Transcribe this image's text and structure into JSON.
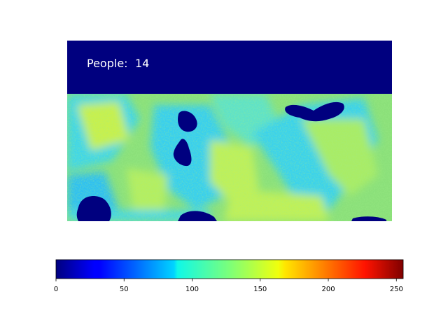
{
  "chart_data": {
    "type": "heatmap",
    "title": "",
    "overlay_text": {
      "label": "People:",
      "value": "14"
    },
    "colormap": "jet",
    "colorbar": {
      "orientation": "horizontal",
      "placement": "bottom",
      "min": 0,
      "max": 255,
      "ticks": [
        0,
        50,
        100,
        150,
        200,
        250
      ],
      "tick_labels": [
        "0",
        "50",
        "100",
        "150",
        "200",
        "250"
      ]
    },
    "heatmap_description_values": {
      "top_band_value": 0,
      "background_mean_value": 120
    },
    "grid": false,
    "axes_visible": false
  }
}
